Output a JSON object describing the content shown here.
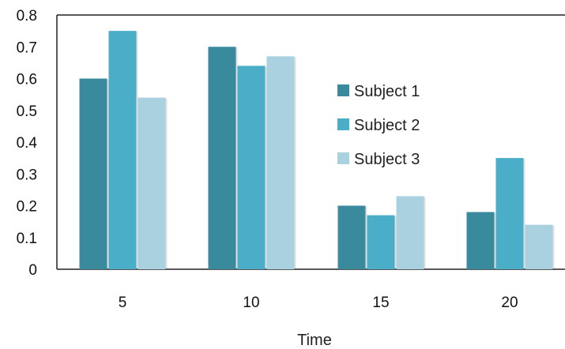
{
  "chart_data": {
    "type": "bar",
    "title": "",
    "xlabel": "Time",
    "ylabel": "",
    "categories": [
      "5",
      "10",
      "15",
      "20"
    ],
    "series": [
      {
        "name": "Subject 1",
        "color": "#3A8A9E",
        "values": [
          0.6,
          0.7,
          0.2,
          0.18
        ]
      },
      {
        "name": "Subject 2",
        "color": "#4BAEC8",
        "values": [
          0.75,
          0.64,
          0.17,
          0.35
        ]
      },
      {
        "name": "Subject 3",
        "color": "#A9D1E0",
        "values": [
          0.54,
          0.67,
          0.23,
          0.14
        ]
      }
    ],
    "ylim": [
      0,
      0.8
    ],
    "yticks": [
      "0",
      "0.1",
      "0.2",
      "0.3",
      "0.4",
      "0.5",
      "0.6",
      "0.7",
      "0.8"
    ],
    "grid": false,
    "legend_position": "right-center"
  }
}
